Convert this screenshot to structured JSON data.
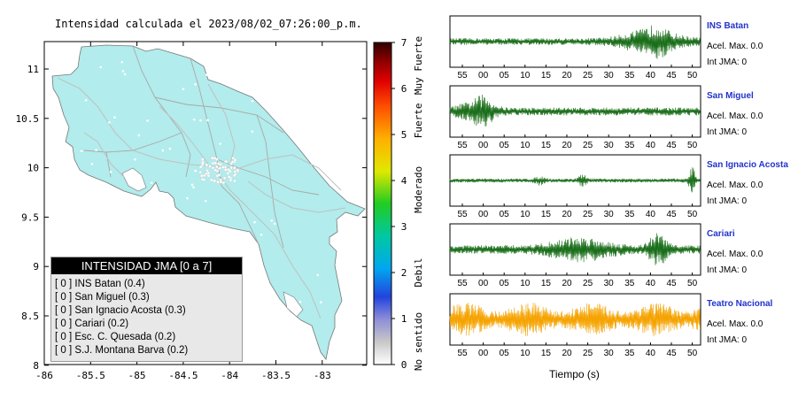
{
  "map": {
    "title": "Intensidad calculada el 2023/08/02_07:26:00_p.m.",
    "x_ticks": [
      "-86",
      "-85.5",
      "-85",
      "-84.5",
      "-84",
      "-83.5",
      "-83"
    ],
    "y_ticks": [
      "11",
      "10.5",
      "10",
      "9.5",
      "9",
      "8.5",
      "8"
    ]
  },
  "colorbar": {
    "ticks": [
      "0",
      "1",
      "2",
      "3",
      "4",
      "5",
      "6",
      "7"
    ],
    "category_labels": [
      "No sentido",
      "Debil",
      "Moderado",
      "Fuerte",
      "Muy Fuerte"
    ]
  },
  "legend": {
    "title": "INTENSIDAD JMA [0 a 7]",
    "rows": [
      {
        "level": "[ 0 ]",
        "text": "INS Batan (0.4)"
      },
      {
        "level": "[ 0 ]",
        "text": "San Miguel (0.3)"
      },
      {
        "level": "[ 0 ]",
        "text": "San Ignacio Acosta (0.3)"
      },
      {
        "level": "[ 0 ]",
        "text": "Cariari (0.2)"
      },
      {
        "level": "[ 0 ]",
        "text": "Esc. C. Quesada (0.2)"
      },
      {
        "level": "[ 0 ]",
        "text": "S.J. Montana Barva (0.2)"
      }
    ]
  },
  "stations": [
    {
      "name": "INS Batan",
      "accel": "Acel. Max. 0.0",
      "intensity": "Int JMA: 0",
      "color": "#1a6e1a"
    },
    {
      "name": "San Miguel",
      "accel": "Acel. Max. 0.0",
      "intensity": "Int JMA: 0",
      "color": "#1a6e1a"
    },
    {
      "name": "San Ignacio Acosta",
      "accel": "Acel. Max. 0.0",
      "intensity": "Int JMA: 0",
      "color": "#1a6e1a"
    },
    {
      "name": "Cariari",
      "accel": "Acel. Max. 0.0",
      "intensity": "Int JMA: 0",
      "color": "#1a6e1a"
    },
    {
      "name": "Teatro Nacional",
      "accel": "Acel. Max. 0.0",
      "intensity": "Int JMA: 0",
      "color": "#f5a300"
    }
  ],
  "time_ticks": [
    "55",
    "00",
    "05",
    "10",
    "15",
    "20",
    "25",
    "30",
    "35",
    "40",
    "45",
    "50"
  ],
  "time_axis_label": "Tiempo (s)",
  "colors": {
    "land": "#b2ecec",
    "trace_green": "#1a6e1a",
    "trace_orange": "#f5a300",
    "station_name": "#2233cc"
  }
}
